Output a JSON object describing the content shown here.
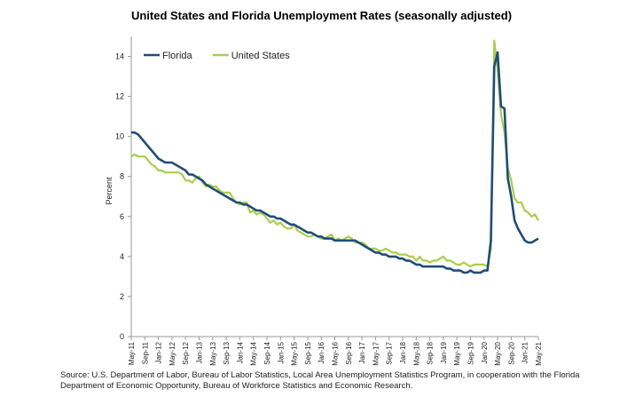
{
  "chart_data": {
    "type": "line",
    "title": "United States and Florida Unemployment Rates (seasonally adjusted)",
    "ylabel": "Percent",
    "xlabel": "",
    "ylim": [
      0,
      15
    ],
    "yticks": [
      0,
      2,
      4,
      6,
      8,
      10,
      12,
      14
    ],
    "x_tick_labels": [
      "May-11",
      "Sep-11",
      "Jan-12",
      "May-12",
      "Sep-12",
      "Jan-13",
      "May-13",
      "Sep-13",
      "Jan-14",
      "May-14",
      "Sep-14",
      "Jan-15",
      "May-15",
      "Sep-15",
      "Jan-16",
      "May-16",
      "Sep-16",
      "Jan-17",
      "May-17",
      "Sep-17",
      "Jan-18",
      "May-18",
      "Sep-18",
      "Jan-19",
      "May-19",
      "Sep-19",
      "Jan-20",
      "May-20",
      "Sep-20",
      "Jan-21",
      "May-21"
    ],
    "grid": false,
    "legend_position": "top-left",
    "series": [
      {
        "name": "Florida",
        "color": "#1f4e79",
        "points": [
          [
            "May-11",
            10.2
          ],
          [
            "Jun-11",
            10.2
          ],
          [
            "Jul-11",
            10.1
          ],
          [
            "Aug-11",
            9.9
          ],
          [
            "Sep-11",
            9.7
          ],
          [
            "Oct-11",
            9.5
          ],
          [
            "Nov-11",
            9.3
          ],
          [
            "Dec-11",
            9.1
          ],
          [
            "Jan-12",
            8.9
          ],
          [
            "Feb-12",
            8.8
          ],
          [
            "Mar-12",
            8.7
          ],
          [
            "Apr-12",
            8.7
          ],
          [
            "May-12",
            8.7
          ],
          [
            "Jun-12",
            8.6
          ],
          [
            "Jul-12",
            8.5
          ],
          [
            "Aug-12",
            8.4
          ],
          [
            "Sep-12",
            8.3
          ],
          [
            "Oct-12",
            8.1
          ],
          [
            "Nov-12",
            8.1
          ],
          [
            "Dec-12",
            8.0
          ],
          [
            "Jan-13",
            7.9
          ],
          [
            "Feb-13",
            7.8
          ],
          [
            "Mar-13",
            7.6
          ],
          [
            "Apr-13",
            7.5
          ],
          [
            "May-13",
            7.4
          ],
          [
            "Jun-13",
            7.3
          ],
          [
            "Jul-13",
            7.2
          ],
          [
            "Aug-13",
            7.1
          ],
          [
            "Sep-13",
            7.0
          ],
          [
            "Oct-13",
            6.9
          ],
          [
            "Nov-13",
            6.8
          ],
          [
            "Dec-13",
            6.7
          ],
          [
            "Jan-14",
            6.7
          ],
          [
            "Feb-14",
            6.6
          ],
          [
            "Mar-14",
            6.6
          ],
          [
            "Apr-14",
            6.5
          ],
          [
            "May-14",
            6.4
          ],
          [
            "Jun-14",
            6.3
          ],
          [
            "Jul-14",
            6.3
          ],
          [
            "Aug-14",
            6.2
          ],
          [
            "Sep-14",
            6.1
          ],
          [
            "Oct-14",
            6.0
          ],
          [
            "Nov-14",
            6.0
          ],
          [
            "Dec-14",
            5.9
          ],
          [
            "Jan-15",
            5.9
          ],
          [
            "Feb-15",
            5.8
          ],
          [
            "Mar-15",
            5.7
          ],
          [
            "Apr-15",
            5.6
          ],
          [
            "May-15",
            5.6
          ],
          [
            "Jun-15",
            5.5
          ],
          [
            "Jul-15",
            5.4
          ],
          [
            "Aug-15",
            5.3
          ],
          [
            "Sep-15",
            5.2
          ],
          [
            "Oct-15",
            5.2
          ],
          [
            "Nov-15",
            5.1
          ],
          [
            "Dec-15",
            5.0
          ],
          [
            "Jan-16",
            5.0
          ],
          [
            "Feb-16",
            4.9
          ],
          [
            "Mar-16",
            4.9
          ],
          [
            "Apr-16",
            4.9
          ],
          [
            "May-16",
            4.8
          ],
          [
            "Jun-16",
            4.8
          ],
          [
            "Jul-16",
            4.8
          ],
          [
            "Aug-16",
            4.8
          ],
          [
            "Sep-16",
            4.8
          ],
          [
            "Oct-16",
            4.8
          ],
          [
            "Nov-16",
            4.8
          ],
          [
            "Dec-16",
            4.7
          ],
          [
            "Jan-17",
            4.6
          ],
          [
            "Feb-17",
            4.5
          ],
          [
            "Mar-17",
            4.4
          ],
          [
            "Apr-17",
            4.3
          ],
          [
            "May-17",
            4.2
          ],
          [
            "Jun-17",
            4.2
          ],
          [
            "Jul-17",
            4.1
          ],
          [
            "Aug-17",
            4.1
          ],
          [
            "Sep-17",
            4.0
          ],
          [
            "Oct-17",
            4.0
          ],
          [
            "Nov-17",
            4.0
          ],
          [
            "Dec-17",
            3.9
          ],
          [
            "Jan-18",
            3.9
          ],
          [
            "Feb-18",
            3.8
          ],
          [
            "Mar-18",
            3.8
          ],
          [
            "Apr-18",
            3.7
          ],
          [
            "May-18",
            3.6
          ],
          [
            "Jun-18",
            3.6
          ],
          [
            "Jul-18",
            3.5
          ],
          [
            "Aug-18",
            3.5
          ],
          [
            "Sep-18",
            3.5
          ],
          [
            "Oct-18",
            3.5
          ],
          [
            "Nov-18",
            3.5
          ],
          [
            "Dec-18",
            3.5
          ],
          [
            "Jan-19",
            3.5
          ],
          [
            "Feb-19",
            3.4
          ],
          [
            "Mar-19",
            3.4
          ],
          [
            "Apr-19",
            3.3
          ],
          [
            "May-19",
            3.3
          ],
          [
            "Jun-19",
            3.3
          ],
          [
            "Jul-19",
            3.2
          ],
          [
            "Aug-19",
            3.2
          ],
          [
            "Sep-19",
            3.3
          ],
          [
            "Oct-19",
            3.2
          ],
          [
            "Nov-19",
            3.2
          ],
          [
            "Dec-19",
            3.2
          ],
          [
            "Jan-20",
            3.3
          ],
          [
            "Feb-20",
            3.3
          ],
          [
            "Mar-20",
            4.8
          ],
          [
            "Apr-20",
            13.5
          ],
          [
            "May-20",
            14.2
          ],
          [
            "Jun-20",
            11.5
          ],
          [
            "Jul-20",
            11.4
          ],
          [
            "Aug-20",
            7.9
          ],
          [
            "Sep-20",
            7.0
          ],
          [
            "Oct-20",
            5.8
          ],
          [
            "Nov-20",
            5.4
          ],
          [
            "Dec-20",
            5.1
          ],
          [
            "Jan-21",
            4.8
          ],
          [
            "Feb-21",
            4.7
          ],
          [
            "Mar-21",
            4.7
          ],
          [
            "Apr-21",
            4.8
          ],
          [
            "May-21",
            4.9
          ]
        ]
      },
      {
        "name": "United States",
        "color": "#a9cf48",
        "points": [
          [
            "May-11",
            9.0
          ],
          [
            "Jun-11",
            9.1
          ],
          [
            "Jul-11",
            9.0
          ],
          [
            "Aug-11",
            9.0
          ],
          [
            "Sep-11",
            9.0
          ],
          [
            "Oct-11",
            8.8
          ],
          [
            "Nov-11",
            8.6
          ],
          [
            "Dec-11",
            8.5
          ],
          [
            "Jan-12",
            8.3
          ],
          [
            "Feb-12",
            8.3
          ],
          [
            "Mar-12",
            8.2
          ],
          [
            "Apr-12",
            8.2
          ],
          [
            "May-12",
            8.2
          ],
          [
            "Jun-12",
            8.2
          ],
          [
            "Jul-12",
            8.2
          ],
          [
            "Aug-12",
            8.1
          ],
          [
            "Sep-12",
            7.8
          ],
          [
            "Oct-12",
            7.8
          ],
          [
            "Nov-12",
            7.7
          ],
          [
            "Dec-12",
            7.9
          ],
          [
            "Jan-13",
            8.0
          ],
          [
            "Feb-13",
            7.7
          ],
          [
            "Mar-13",
            7.5
          ],
          [
            "Apr-13",
            7.6
          ],
          [
            "May-13",
            7.5
          ],
          [
            "Jun-13",
            7.5
          ],
          [
            "Jul-13",
            7.3
          ],
          [
            "Aug-13",
            7.2
          ],
          [
            "Sep-13",
            7.2
          ],
          [
            "Oct-13",
            7.2
          ],
          [
            "Nov-13",
            6.9
          ],
          [
            "Dec-13",
            6.7
          ],
          [
            "Jan-14",
            6.6
          ],
          [
            "Feb-14",
            6.7
          ],
          [
            "Mar-14",
            6.7
          ],
          [
            "Apr-14",
            6.2
          ],
          [
            "May-14",
            6.3
          ],
          [
            "Jun-14",
            6.1
          ],
          [
            "Jul-14",
            6.2
          ],
          [
            "Aug-14",
            6.1
          ],
          [
            "Sep-14",
            5.9
          ],
          [
            "Oct-14",
            5.7
          ],
          [
            "Nov-14",
            5.8
          ],
          [
            "Dec-14",
            5.6
          ],
          [
            "Jan-15",
            5.7
          ],
          [
            "Feb-15",
            5.5
          ],
          [
            "Mar-15",
            5.4
          ],
          [
            "Apr-15",
            5.4
          ],
          [
            "May-15",
            5.6
          ],
          [
            "Jun-15",
            5.3
          ],
          [
            "Jul-15",
            5.2
          ],
          [
            "Aug-15",
            5.1
          ],
          [
            "Sep-15",
            5.0
          ],
          [
            "Oct-15",
            5.0
          ],
          [
            "Nov-15",
            5.1
          ],
          [
            "Dec-15",
            5.0
          ],
          [
            "Jan-16",
            4.9
          ],
          [
            "Feb-16",
            4.9
          ],
          [
            "Mar-16",
            5.0
          ],
          [
            "Apr-16",
            5.1
          ],
          [
            "May-16",
            4.8
          ],
          [
            "Jun-16",
            4.9
          ],
          [
            "Jul-16",
            4.8
          ],
          [
            "Aug-16",
            4.9
          ],
          [
            "Sep-16",
            5.0
          ],
          [
            "Oct-16",
            4.9
          ],
          [
            "Nov-16",
            4.7
          ],
          [
            "Dec-16",
            4.7
          ],
          [
            "Jan-17",
            4.7
          ],
          [
            "Feb-17",
            4.6
          ],
          [
            "Mar-17",
            4.4
          ],
          [
            "Apr-17",
            4.4
          ],
          [
            "May-17",
            4.4
          ],
          [
            "Jun-17",
            4.3
          ],
          [
            "Jul-17",
            4.3
          ],
          [
            "Aug-17",
            4.4
          ],
          [
            "Sep-17",
            4.3
          ],
          [
            "Oct-17",
            4.2
          ],
          [
            "Nov-17",
            4.2
          ],
          [
            "Dec-17",
            4.1
          ],
          [
            "Jan-18",
            4.1
          ],
          [
            "Feb-18",
            4.1
          ],
          [
            "Mar-18",
            4.0
          ],
          [
            "Apr-18",
            4.0
          ],
          [
            "May-18",
            3.8
          ],
          [
            "Jun-18",
            4.0
          ],
          [
            "Jul-18",
            3.8
          ],
          [
            "Aug-18",
            3.8
          ],
          [
            "Sep-18",
            3.7
          ],
          [
            "Oct-18",
            3.8
          ],
          [
            "Nov-18",
            3.8
          ],
          [
            "Dec-18",
            3.9
          ],
          [
            "Jan-19",
            4.0
          ],
          [
            "Feb-19",
            3.8
          ],
          [
            "Mar-19",
            3.8
          ],
          [
            "Apr-19",
            3.7
          ],
          [
            "May-19",
            3.6
          ],
          [
            "Jun-19",
            3.6
          ],
          [
            "Jul-19",
            3.7
          ],
          [
            "Aug-19",
            3.6
          ],
          [
            "Sep-19",
            3.5
          ],
          [
            "Oct-19",
            3.6
          ],
          [
            "Nov-19",
            3.6
          ],
          [
            "Dec-19",
            3.6
          ],
          [
            "Jan-20",
            3.6
          ],
          [
            "Feb-20",
            3.5
          ],
          [
            "Mar-20",
            4.4
          ],
          [
            "Apr-20",
            14.8
          ],
          [
            "May-20",
            13.3
          ],
          [
            "Jun-20",
            11.1
          ],
          [
            "Jul-20",
            10.2
          ],
          [
            "Aug-20",
            8.4
          ],
          [
            "Sep-20",
            7.8
          ],
          [
            "Oct-20",
            6.9
          ],
          [
            "Nov-20",
            6.7
          ],
          [
            "Dec-20",
            6.7
          ],
          [
            "Jan-21",
            6.3
          ],
          [
            "Feb-21",
            6.2
          ],
          [
            "Mar-21",
            6.0
          ],
          [
            "Apr-21",
            6.1
          ],
          [
            "May-21",
            5.8
          ]
        ]
      }
    ]
  },
  "source": "Source:  U.S. Department of Labor, Bureau of Labor Statistics, Local Area Unemployment Statistics Program, in cooperation with the Florida Department of Economic Opportunity, Bureau of Workforce Statistics and Economic Research."
}
